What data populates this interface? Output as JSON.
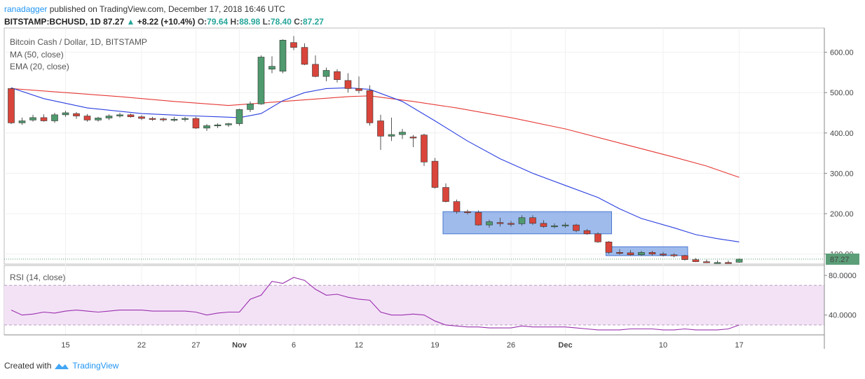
{
  "header": {
    "user": "ranadagger",
    "published": "published on TradingView.com, December 17, 2018 16:46 UTC",
    "symbol": "BITSTAMP:BCHUSD, 1D",
    "last": "87.27",
    "change": "+8.22 (+10.4%)",
    "o_label": "O:",
    "o": "79.64",
    "h_label": "H:",
    "h": "88.98",
    "l_label": "L:",
    "l": "78.40",
    "c_label": "C:",
    "c": "87.27"
  },
  "legend": {
    "title": "Bitcoin Cash / Dollar, 1D, BITSTAMP",
    "ma": "MA (50, close)",
    "ema": "EMA (20, close)",
    "rsi": "RSI (14, close)"
  },
  "footer": {
    "created": "Created with",
    "brand": "TradingView"
  },
  "chart_data": [
    {
      "type": "candlestick",
      "title": "Bitcoin Cash / Dollar, 1D, BITSTAMP",
      "y_ticks": [
        "100.00",
        "200.00",
        "300.00",
        "400.00",
        "500.00",
        "600.00"
      ],
      "ylim": [
        75,
        660
      ],
      "x_ticks": [
        {
          "label": "15",
          "i": 5
        },
        {
          "label": "22",
          "i": 12
        },
        {
          "label": "27",
          "i": 17
        },
        {
          "label": "Nov",
          "i": 21
        },
        {
          "label": "6",
          "i": 26
        },
        {
          "label": "12",
          "i": 32
        },
        {
          "label": "19",
          "i": 39
        },
        {
          "label": "26",
          "i": 46
        },
        {
          "label": "Dec",
          "i": 51
        },
        {
          "label": "10",
          "i": 60
        },
        {
          "label": "17",
          "i": 67
        }
      ],
      "last_price_label": "87.27",
      "colors": {
        "up": "#4f9a6e",
        "down": "#d9453b",
        "ma50": "#e53935",
        "ema20": "#2b3fe0",
        "box": "#7ea4e6"
      },
      "candles": [
        [
          510,
          512,
          422,
          425
        ],
        [
          425,
          438,
          420,
          430
        ],
        [
          432,
          445,
          428,
          438
        ],
        [
          438,
          446,
          428,
          430
        ],
        [
          430,
          450,
          425,
          445
        ],
        [
          445,
          455,
          440,
          450
        ],
        [
          448,
          452,
          435,
          442
        ],
        [
          442,
          447,
          428,
          432
        ],
        [
          432,
          440,
          428,
          437
        ],
        [
          437,
          446,
          432,
          442
        ],
        [
          442,
          450,
          438,
          445
        ],
        [
          445,
          448,
          438,
          440
        ],
        [
          440,
          444,
          432,
          436
        ],
        [
          436,
          440,
          430,
          435
        ],
        [
          435,
          438,
          428,
          433
        ],
        [
          433,
          440,
          428,
          434
        ],
        [
          434,
          440,
          428,
          436
        ],
        [
          436,
          440,
          410,
          412
        ],
        [
          412,
          422,
          405,
          418
        ],
        [
          418,
          424,
          412,
          420
        ],
        [
          420,
          425,
          415,
          423
        ],
        [
          423,
          460,
          418,
          458
        ],
        [
          458,
          478,
          452,
          472
        ],
        [
          472,
          592,
          470,
          588
        ],
        [
          558,
          590,
          548,
          565
        ],
        [
          553,
          632,
          548,
          630
        ],
        [
          624,
          640,
          605,
          612
        ],
        [
          612,
          622,
          568,
          570
        ],
        [
          570,
          592,
          538,
          540
        ],
        [
          540,
          562,
          528,
          555
        ],
        [
          552,
          558,
          525,
          532
        ],
        [
          530,
          548,
          500,
          510
        ],
        [
          510,
          540,
          498,
          505
        ],
        [
          505,
          518,
          418,
          425
        ],
        [
          430,
          445,
          358,
          392
        ],
        [
          392,
          438,
          380,
          396
        ],
        [
          396,
          410,
          385,
          402
        ],
        [
          390,
          395,
          365,
          388
        ],
        [
          395,
          398,
          318,
          328
        ],
        [
          330,
          338,
          262,
          265
        ],
        [
          265,
          275,
          228,
          230
        ],
        [
          230,
          235,
          200,
          205
        ],
        [
          205,
          210,
          198,
          203
        ],
        [
          203,
          208,
          170,
          172
        ],
        [
          172,
          185,
          165,
          180
        ],
        [
          178,
          190,
          168,
          176
        ],
        [
          176,
          182,
          168,
          174
        ],
        [
          175,
          196,
          170,
          190
        ],
        [
          190,
          196,
          172,
          176
        ],
        [
          176,
          184,
          165,
          168
        ],
        [
          168,
          176,
          164,
          170
        ],
        [
          170,
          178,
          165,
          172
        ],
        [
          172,
          175,
          154,
          158
        ],
        [
          158,
          162,
          148,
          150
        ],
        [
          150,
          154,
          128,
          130
        ],
        [
          130,
          132,
          100,
          104
        ],
        [
          104,
          112,
          98,
          103
        ],
        [
          103,
          110,
          96,
          98
        ],
        [
          98,
          108,
          95,
          104
        ],
        [
          104,
          108,
          96,
          100
        ],
        [
          100,
          105,
          94,
          98
        ],
        [
          98,
          102,
          92,
          96
        ],
        [
          96,
          98,
          84,
          86
        ],
        [
          86,
          90,
          80,
          81
        ],
        [
          81,
          86,
          78,
          79
        ],
        [
          79,
          84,
          77,
          79
        ],
        [
          79,
          84,
          76,
          78
        ],
        [
          79.64,
          88.98,
          78.4,
          87.27
        ]
      ],
      "ma50": [
        [
          0,
          510
        ],
        [
          5,
          500
        ],
        [
          10,
          490
        ],
        [
          15,
          478
        ],
        [
          20,
          468
        ],
        [
          25,
          478
        ],
        [
          31,
          490
        ],
        [
          33,
          492
        ],
        [
          37,
          478
        ],
        [
          41,
          462
        ],
        [
          46,
          438
        ],
        [
          51,
          410
        ],
        [
          56,
          375
        ],
        [
          61,
          340
        ],
        [
          64,
          318
        ],
        [
          67,
          290
        ]
      ],
      "ema20": [
        [
          0,
          512
        ],
        [
          3,
          485
        ],
        [
          7,
          462
        ],
        [
          12,
          448
        ],
        [
          16,
          443
        ],
        [
          19,
          440
        ],
        [
          21,
          438
        ],
        [
          23,
          448
        ],
        [
          25,
          480
        ],
        [
          27,
          500
        ],
        [
          29,
          510
        ],
        [
          31,
          512
        ],
        [
          33,
          508
        ],
        [
          36,
          478
        ],
        [
          39,
          430
        ],
        [
          42,
          380
        ],
        [
          45,
          336
        ],
        [
          48,
          300
        ],
        [
          51,
          270
        ],
        [
          54,
          240
        ],
        [
          56,
          212
        ],
        [
          58,
          188
        ],
        [
          61,
          165
        ],
        [
          63,
          148
        ],
        [
          65,
          138
        ],
        [
          67,
          130
        ]
      ],
      "boxes": [
        {
          "i0": 40,
          "i1": 55,
          "p0": 205,
          "p1": 150
        },
        {
          "i0": 55,
          "i1": 62,
          "p0": 118,
          "p1": 96
        }
      ]
    },
    {
      "type": "line",
      "name": "RSI (14, close)",
      "y_ticks": [
        "40.0000",
        "80.0000"
      ],
      "ylim": [
        20,
        90
      ],
      "band": [
        30,
        70
      ],
      "values": [
        [
          0,
          45
        ],
        [
          1,
          40
        ],
        [
          2,
          41
        ],
        [
          3,
          43
        ],
        [
          4,
          42
        ],
        [
          5,
          44
        ],
        [
          6,
          45
        ],
        [
          7,
          44
        ],
        [
          8,
          43
        ],
        [
          9,
          44
        ],
        [
          10,
          45
        ],
        [
          11,
          45
        ],
        [
          12,
          45
        ],
        [
          13,
          44
        ],
        [
          14,
          44
        ],
        [
          15,
          44
        ],
        [
          16,
          44
        ],
        [
          17,
          43
        ],
        [
          18,
          40
        ],
        [
          19,
          42
        ],
        [
          20,
          43
        ],
        [
          21,
          43
        ],
        [
          22,
          56
        ],
        [
          23,
          60
        ],
        [
          24,
          74
        ],
        [
          25,
          72
        ],
        [
          26,
          78
        ],
        [
          27,
          75
        ],
        [
          28,
          66
        ],
        [
          29,
          60
        ],
        [
          30,
          61
        ],
        [
          31,
          58
        ],
        [
          32,
          56
        ],
        [
          33,
          55
        ],
        [
          34,
          43
        ],
        [
          35,
          40
        ],
        [
          36,
          40
        ],
        [
          37,
          41
        ],
        [
          38,
          40
        ],
        [
          39,
          34
        ],
        [
          40,
          30
        ],
        [
          41,
          29
        ],
        [
          42,
          28
        ],
        [
          43,
          28
        ],
        [
          44,
          27
        ],
        [
          45,
          27
        ],
        [
          46,
          27
        ],
        [
          47,
          29
        ],
        [
          48,
          28
        ],
        [
          49,
          28
        ],
        [
          50,
          28
        ],
        [
          51,
          28
        ],
        [
          52,
          27
        ],
        [
          53,
          26
        ],
        [
          54,
          25
        ],
        [
          55,
          25
        ],
        [
          56,
          25
        ],
        [
          57,
          26
        ],
        [
          58,
          26
        ],
        [
          59,
          26
        ],
        [
          60,
          25
        ],
        [
          61,
          25
        ],
        [
          62,
          26
        ],
        [
          63,
          25
        ],
        [
          64,
          25
        ],
        [
          65,
          25
        ],
        [
          66,
          26
        ],
        [
          67,
          30
        ]
      ]
    }
  ]
}
